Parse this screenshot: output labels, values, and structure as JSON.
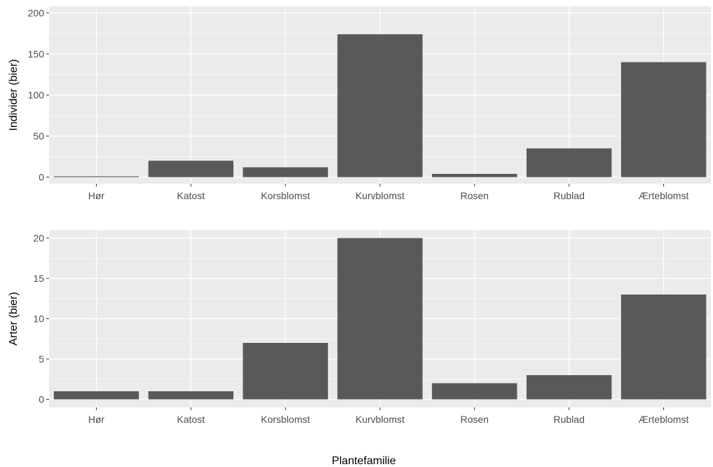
{
  "chart_data": [
    {
      "type": "bar",
      "ylabel": "Individer (bier)",
      "xlabel": "",
      "categories": [
        "Hør",
        "Katost",
        "Korsblomst",
        "Kurvblomst",
        "Rosen",
        "Rublad",
        "Ærteblomst"
      ],
      "values": [
        1,
        20,
        12,
        174,
        4,
        35,
        140
      ],
      "ylim": [
        -8,
        208
      ],
      "yticks": [
        "0",
        "50",
        "100",
        "150",
        "200"
      ],
      "ytick_values": [
        0,
        50,
        100,
        150,
        200
      ],
      "grid": true,
      "bar_color": "#595959",
      "panel_color": "#ebebeb"
    },
    {
      "type": "bar",
      "ylabel": "Arter (bier)",
      "xlabel": "",
      "categories": [
        "Hør",
        "Katost",
        "Korsblomst",
        "Kurvblomst",
        "Rosen",
        "Rublad",
        "Ærteblomst"
      ],
      "values": [
        1,
        1,
        7,
        20,
        2,
        3,
        13
      ],
      "ylim": [
        -1,
        21
      ],
      "yticks": [
        "0",
        "5",
        "10",
        "15",
        "20"
      ],
      "ytick_values": [
        0,
        5,
        10,
        15,
        20
      ],
      "grid": true,
      "bar_color": "#595959",
      "panel_color": "#ebebeb"
    }
  ],
  "shared_xlabel": "Plantefamilie"
}
